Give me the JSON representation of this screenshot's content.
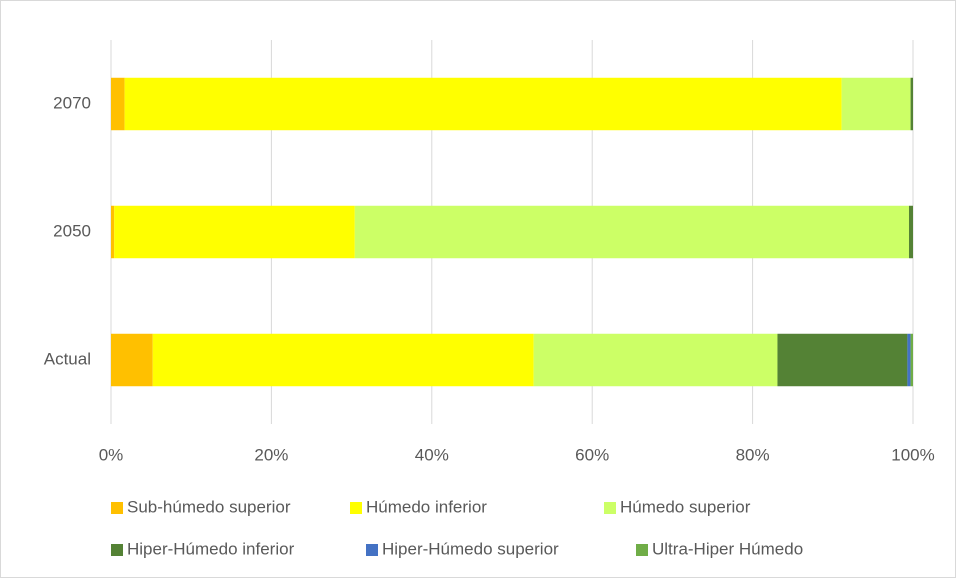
{
  "chart_data": {
    "type": "stacked_barh",
    "categories": [
      "Actual",
      "2050",
      "2070"
    ],
    "series": [
      {
        "name": "Sub-húmedo superior",
        "color": "#ffc000",
        "values": [
          5.2,
          0.4,
          1.7
        ]
      },
      {
        "name": "Húmedo inferior",
        "color": "#ffff00",
        "values": [
          47.5,
          30.0,
          89.4
        ]
      },
      {
        "name": "Húmedo superior",
        "color": "#ccff66",
        "values": [
          30.4,
          69.1,
          8.6
        ]
      },
      {
        "name": "Hiper-Húmedo inferior",
        "color": "#548235",
        "values": [
          16.2,
          0.5,
          0.3
        ]
      },
      {
        "name": "Hiper-Húmedo superior",
        "color": "#4472c4",
        "values": [
          0.4,
          0,
          0
        ]
      },
      {
        "name": "Ultra-Hiper Húmedo",
        "color": "#70ad47",
        "values": [
          0.3,
          0,
          0
        ]
      }
    ],
    "xlim": [
      0,
      100
    ],
    "xticks": [
      {
        "value": 0,
        "label": "0%"
      },
      {
        "value": 20,
        "label": "20%"
      },
      {
        "value": 40,
        "label": "40%"
      },
      {
        "value": 60,
        "label": "60%"
      },
      {
        "value": 80,
        "label": "80%"
      },
      {
        "value": 100,
        "label": "100%"
      }
    ],
    "grid": true,
    "legend": "bottom"
  }
}
